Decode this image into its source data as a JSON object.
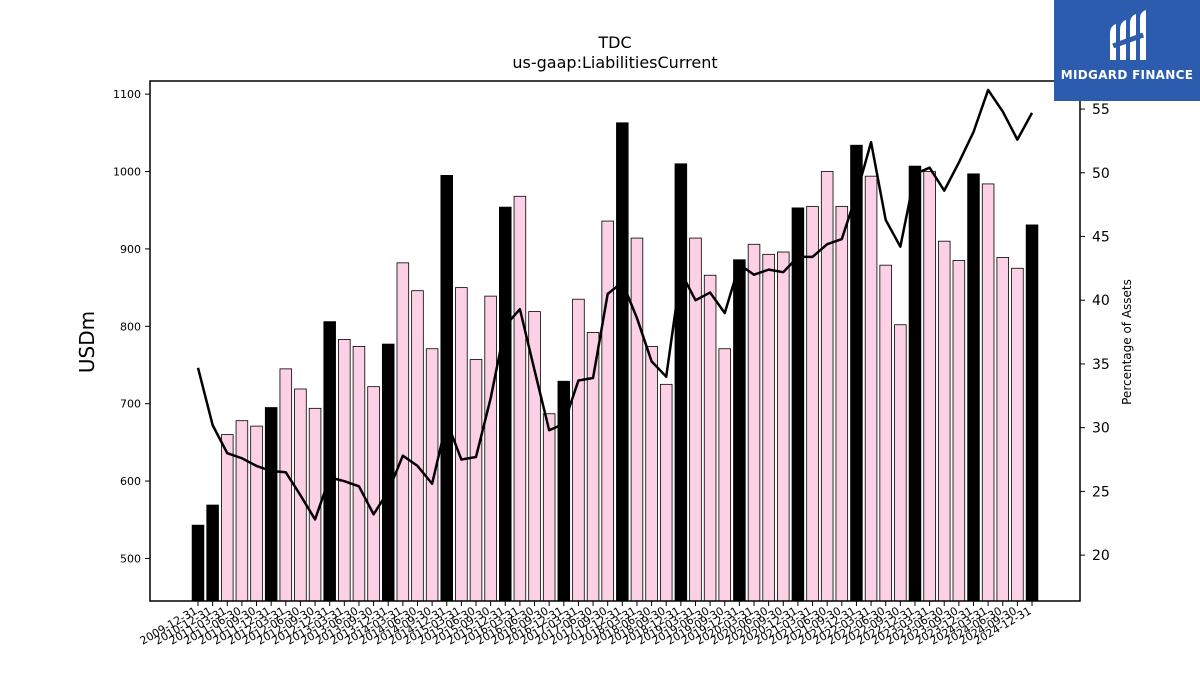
{
  "chart_data": {
    "type": "bar",
    "title": "TDC",
    "subtitle": "us-gaap:LiabilitiesCurrent",
    "ylabel": "USDm",
    "y2label": "Percentage of Assets",
    "ylim": [
      445,
      1117
    ],
    "y2lim": [
      16.4,
      57.2
    ],
    "yticks": [
      500,
      600,
      700,
      800,
      900,
      1000,
      1100
    ],
    "y2ticks": [
      20,
      25,
      30,
      35,
      40,
      45,
      50,
      55
    ],
    "x": [
      "2009-12-31",
      "2010-12-31",
      "2011-03-31",
      "2011-06-30",
      "2011-09-30",
      "2011-12-31",
      "2012-03-31",
      "2012-06-30",
      "2012-09-30",
      "2012-12-31",
      "2013-03-31",
      "2013-06-30",
      "2013-09-30",
      "2013-12-31",
      "2014-03-31",
      "2014-06-30",
      "2014-09-30",
      "2014-12-31",
      "2015-03-31",
      "2015-06-30",
      "2015-09-30",
      "2015-12-31",
      "2016-03-31",
      "2016-06-30",
      "2016-09-30",
      "2016-12-31",
      "2017-03-31",
      "2017-06-30",
      "2017-09-30",
      "2017-12-31",
      "2018-03-31",
      "2018-06-30",
      "2018-09-30",
      "2018-12-31",
      "2019-03-31",
      "2019-06-30",
      "2019-09-30",
      "2019-12-31",
      "2020-03-31",
      "2020-06-30",
      "2020-09-30",
      "2020-12-31",
      "2021-03-31",
      "2021-06-30",
      "2021-09-30",
      "2021-12-31",
      "2022-03-31",
      "2022-06-30",
      "2022-09-30",
      "2022-12-31",
      "2023-03-31",
      "2023-06-30",
      "2023-09-30",
      "2023-12-31",
      "2024-03-31",
      "2024-06-30",
      "2024-09-30",
      "2024-12-31"
    ],
    "series": [
      {
        "kind": "bar",
        "values": [
          543,
          569,
          660,
          678,
          671,
          695,
          745,
          719,
          694,
          806,
          783,
          774,
          722,
          777,
          882,
          846,
          771,
          995,
          850,
          757,
          839,
          954,
          968,
          819,
          687,
          729,
          835,
          792,
          936,
          1063,
          914,
          774,
          725,
          1010,
          914,
          866,
          771,
          886,
          906,
          893,
          896,
          953,
          955,
          1000,
          955,
          1034,
          994,
          879,
          802,
          1007,
          1000,
          910,
          885,
          997,
          984,
          889,
          875,
          931
        ],
        "annual_flags": [
          1,
          1,
          0,
          0,
          0,
          1,
          0,
          0,
          0,
          1,
          0,
          0,
          0,
          1,
          0,
          0,
          0,
          1,
          0,
          0,
          0,
          1,
          0,
          0,
          0,
          1,
          0,
          0,
          0,
          1,
          0,
          0,
          0,
          1,
          0,
          0,
          0,
          1,
          0,
          0,
          0,
          1,
          0,
          0,
          0,
          1,
          0,
          0,
          0,
          1,
          0,
          0,
          0,
          1,
          0,
          0,
          0,
          1
        ]
      },
      {
        "kind": "line",
        "axis": "right",
        "values": [
          34.7,
          30.2,
          28.0,
          27.6,
          27.0,
          26.6,
          26.5,
          24.7,
          22.8,
          26.1,
          25.8,
          25.4,
          23.2,
          25.0,
          27.8,
          27.0,
          25.6,
          30.5,
          27.5,
          27.7,
          32.3,
          38.0,
          39.3,
          34.5,
          29.8,
          30.3,
          33.7,
          33.9,
          40.5,
          41.4,
          38.6,
          35.2,
          34.0,
          42.2,
          40.0,
          40.6,
          39.0,
          42.8,
          42.0,
          42.4,
          42.2,
          43.4,
          43.4,
          44.4,
          44.8,
          48.3,
          52.4,
          46.3,
          44.2,
          49.9,
          50.4,
          48.6,
          50.8,
          53.2,
          56.5,
          54.8,
          52.6,
          54.7
        ]
      }
    ],
    "colors": {
      "annual_bar": "#000000",
      "quarter_bar": "#fcd0e5",
      "bar_edge": "#000000",
      "line": "#000000"
    }
  },
  "logo": {
    "text": "MIDGARD FINANCE",
    "background": "#2b5cad"
  }
}
